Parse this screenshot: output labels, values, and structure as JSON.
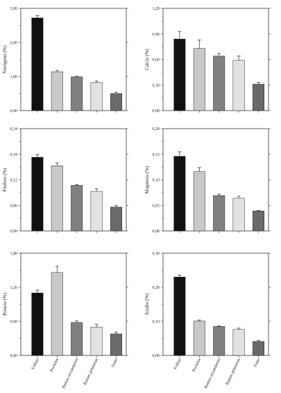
{
  "colors": {
    "bar_fills": [
      "#111111",
      "#c8c8c8",
      "#808080",
      "#e2e2e2",
      "#6a6a6a"
    ],
    "axis": "#333333"
  },
  "categories": [
    "Follaje",
    "Pecíolos",
    "Ramas secundarias",
    "Ramas primarias",
    "Fuste"
  ],
  "chart_data": [
    {
      "type": "bar",
      "ylabel": "Nitrógeno (%)",
      "categories": [
        "Follaje",
        "Pecíolos",
        "Ramas secundarias",
        "Ramas primarias",
        "Fuste"
      ],
      "values": [
        2.72,
        1.14,
        0.99,
        0.82,
        0.5
      ],
      "errors": [
        0.07,
        0.04,
        0.02,
        0.05,
        0.04
      ],
      "ylim": [
        0,
        3.0
      ],
      "yticks": [
        "0,00",
        "1,00",
        "2,00",
        "3,00"
      ],
      "show_category_labels": false,
      "grid": false
    },
    {
      "type": "bar",
      "ylabel": "Calcio (%)",
      "categories": [
        "Follaje",
        "Pecíolos",
        "Ramas secundarias",
        "Ramas primarias",
        "Fuste"
      ],
      "values": [
        0.84,
        0.73,
        0.64,
        0.59,
        0.31
      ],
      "errors": [
        0.09,
        0.1,
        0.03,
        0.05,
        0.02
      ],
      "ylim": [
        0,
        1.2
      ],
      "yticks": [
        "0,00",
        "0,30",
        "0,60",
        "0,90",
        "1,20"
      ],
      "show_category_labels": false,
      "grid": false
    },
    {
      "type": "bar",
      "ylabel": "Fósforo (%)",
      "categories": [
        "Follaje",
        "Pecíolos",
        "Ramas secundarias",
        "Ramas primarias",
        "Fuste"
      ],
      "values": [
        0.173,
        0.153,
        0.107,
        0.093,
        0.056
      ],
      "errors": [
        0.006,
        0.007,
        0.002,
        0.006,
        0.004
      ],
      "ylim": [
        0,
        0.24
      ],
      "yticks": [
        "0,00",
        "0,06",
        "0,12",
        "0,18",
        "0,24"
      ],
      "show_category_labels": false,
      "grid": false
    },
    {
      "type": "bar",
      "ylabel": "Magnesio (%)",
      "categories": [
        "Follaje",
        "Pecíolos",
        "Ramas secundarias",
        "Ramas primarias",
        "Fuste"
      ],
      "values": [
        0.146,
        0.116,
        0.069,
        0.064,
        0.039
      ],
      "errors": [
        0.009,
        0.008,
        0.003,
        0.004,
        0.001
      ],
      "ylim": [
        0,
        0.2
      ],
      "yticks": [
        "0,00",
        "0,05",
        "0,10",
        "0,15",
        "0,20"
      ],
      "show_category_labels": false,
      "grid": false
    },
    {
      "type": "bar",
      "ylabel": "Potasio (%)",
      "categories": [
        "Follaje",
        "Pecíolos",
        "Ramas secundarias",
        "Ramas primarias",
        "Fuste"
      ],
      "values": [
        1.1,
        1.46,
        0.58,
        0.5,
        0.38
      ],
      "errors": [
        0.05,
        0.11,
        0.03,
        0.05,
        0.03
      ],
      "ylim": [
        0,
        1.8
      ],
      "yticks": [
        "0,00",
        "0,60",
        "1,20",
        "1,80"
      ],
      "show_category_labels": true,
      "grid": false
    },
    {
      "type": "bar",
      "ylabel": "Azufre (%)",
      "categories": [
        "Follaje",
        "Pecíolos",
        "Ramas secundarias",
        "Ramas primarias",
        "Fuste"
      ],
      "values": [
        0.23,
        0.101,
        0.085,
        0.076,
        0.041
      ],
      "errors": [
        0.006,
        0.003,
        0.002,
        0.004,
        0.003
      ],
      "ylim": [
        0,
        0.3
      ],
      "yticks": [
        "0,00",
        "0,10",
        "0,20",
        "0,30"
      ],
      "show_category_labels": true,
      "grid": false
    }
  ]
}
